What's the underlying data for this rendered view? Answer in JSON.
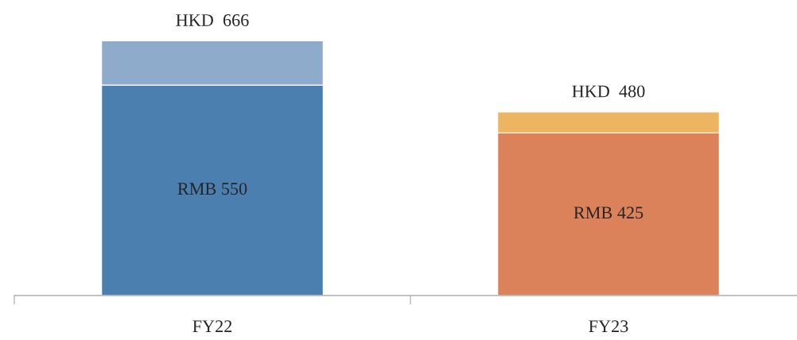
{
  "chart_data": {
    "type": "bar",
    "stacked": true,
    "categories": [
      "FY22",
      "FY23"
    ],
    "series": [
      {
        "colors": [
          "#4a7fb0",
          "#dc825b"
        ],
        "values": [
          550,
          425
        ],
        "value_labels": [
          "RMB 550",
          "RMB 425"
        ]
      },
      {
        "colors": [
          "#8eabcb",
          "#edb462"
        ],
        "values": [
          116,
          55
        ]
      }
    ],
    "totals": [
      "HKD  666",
      "HKD  480"
    ],
    "grid": false,
    "legend": false
  }
}
